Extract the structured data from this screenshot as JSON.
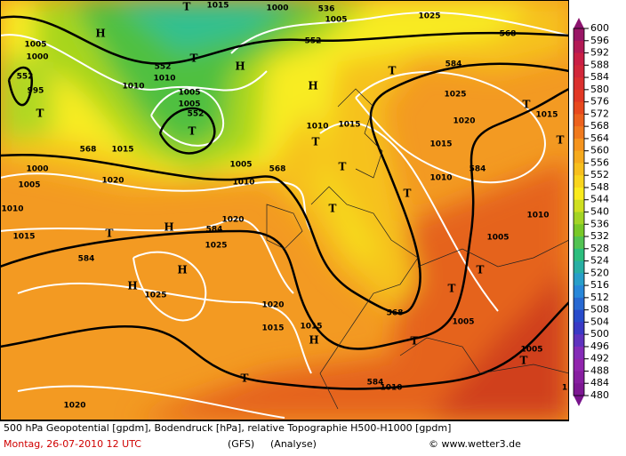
{
  "map_labels": [
    "T",
    "1015",
    "1000",
    "536",
    "1005",
    "1025",
    "H",
    "1005",
    "1000",
    "552",
    "568",
    "552",
    "552",
    "T",
    "H",
    "T",
    "584",
    "995",
    "1010",
    "1010",
    "1005",
    "H",
    "1005",
    "552",
    "T",
    "1025",
    "T",
    "1015",
    "1010",
    "1015",
    "1020",
    "T",
    "1015",
    "T",
    "568",
    "1015",
    "T",
    "1000",
    "1005",
    "568",
    "584",
    "T",
    "1005",
    "1020",
    "1010",
    "1010",
    "T",
    "T",
    "1010",
    "1020",
    "H",
    "584",
    "1010",
    "1015",
    "T",
    "1005",
    "1025",
    "584",
    "H",
    "T",
    "H",
    "1025",
    "T",
    "1020",
    "568",
    "1005",
    "1015",
    "1015",
    "H",
    "T",
    "1005",
    "T",
    "T",
    "584",
    "1010",
    "1",
    "1020"
  ],
  "colorbar": {
    "labels": [
      600,
      596,
      592,
      588,
      584,
      580,
      576,
      572,
      568,
      564,
      560,
      556,
      552,
      548,
      544,
      540,
      536,
      532,
      528,
      524,
      520,
      516,
      512,
      508,
      504,
      500,
      496,
      492,
      488,
      484,
      480
    ]
  },
  "footer": {
    "line1": "500 hPa Geopotential [gpdm], Bodendruck [hPa], relative Topographie H500-H1000 [gpdm]",
    "date": "Montag, 26-07-2010   12 UTC",
    "model": "(GFS)",
    "run": "(Analyse)",
    "copyright": "© www.wetter3.de"
  }
}
